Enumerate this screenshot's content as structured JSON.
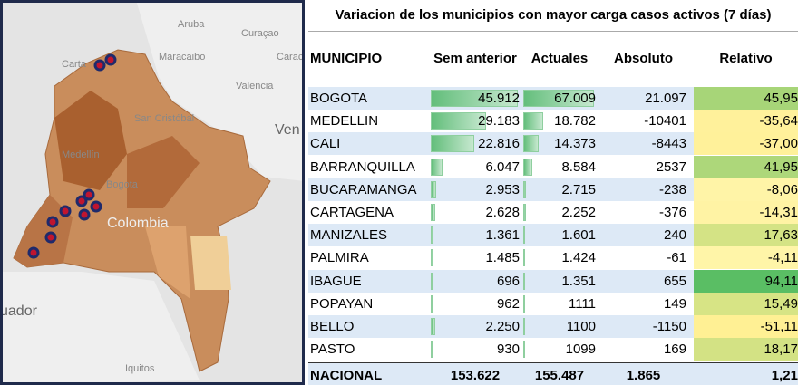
{
  "map": {
    "labels": [
      "Aruba",
      "Curaçao",
      "Carta",
      "Maracaibo",
      "Caraca",
      "Valencia",
      "San Cristóbal",
      "Ven",
      "Medellín",
      "Bogota",
      "Colombia",
      "uador",
      "Iquitos"
    ]
  },
  "table": {
    "title": "Variacion de los municipios con mayor carga casos activos (7 días)",
    "headers": [
      "MUNICIPIO",
      "Sem anterior",
      "Actuales",
      "Absoluto",
      "Relativo"
    ],
    "rows": [
      [
        "BOGOTA",
        "45.912",
        "67.009",
        "21.097",
        "45,95"
      ],
      [
        "MEDELLIN",
        "29.183",
        "18.782",
        "-10401",
        "-35,64"
      ],
      [
        "CALI",
        "22.816",
        "14.373",
        "-8443",
        "-37,00"
      ],
      [
        "BARRANQUILLA",
        "6.047",
        "8.584",
        "2537",
        "41,95"
      ],
      [
        "BUCARAMANGA",
        "2.953",
        "2.715",
        "-238",
        "-8,06"
      ],
      [
        "CARTAGENA",
        "2.628",
        "2.252",
        "-376",
        "-14,31"
      ],
      [
        "MANIZALES",
        "1.361",
        "1.601",
        "240",
        "17,63"
      ],
      [
        "PALMIRA",
        "1.485",
        "1.424",
        "-61",
        "-4,11"
      ],
      [
        "IBAGUE",
        "696",
        "1.351",
        "655",
        "94,11"
      ],
      [
        "POPAYAN",
        "962",
        "1111",
        "149",
        "15,49"
      ],
      [
        "BELLO",
        "2.250",
        "1100",
        "-1150",
        "-51,11"
      ],
      [
        "PASTO",
        "930",
        "1099",
        "169",
        "18,17"
      ]
    ],
    "total": [
      "NACIONAL",
      "153.622",
      "155.487",
      "1.865",
      "1,21"
    ]
  }
}
